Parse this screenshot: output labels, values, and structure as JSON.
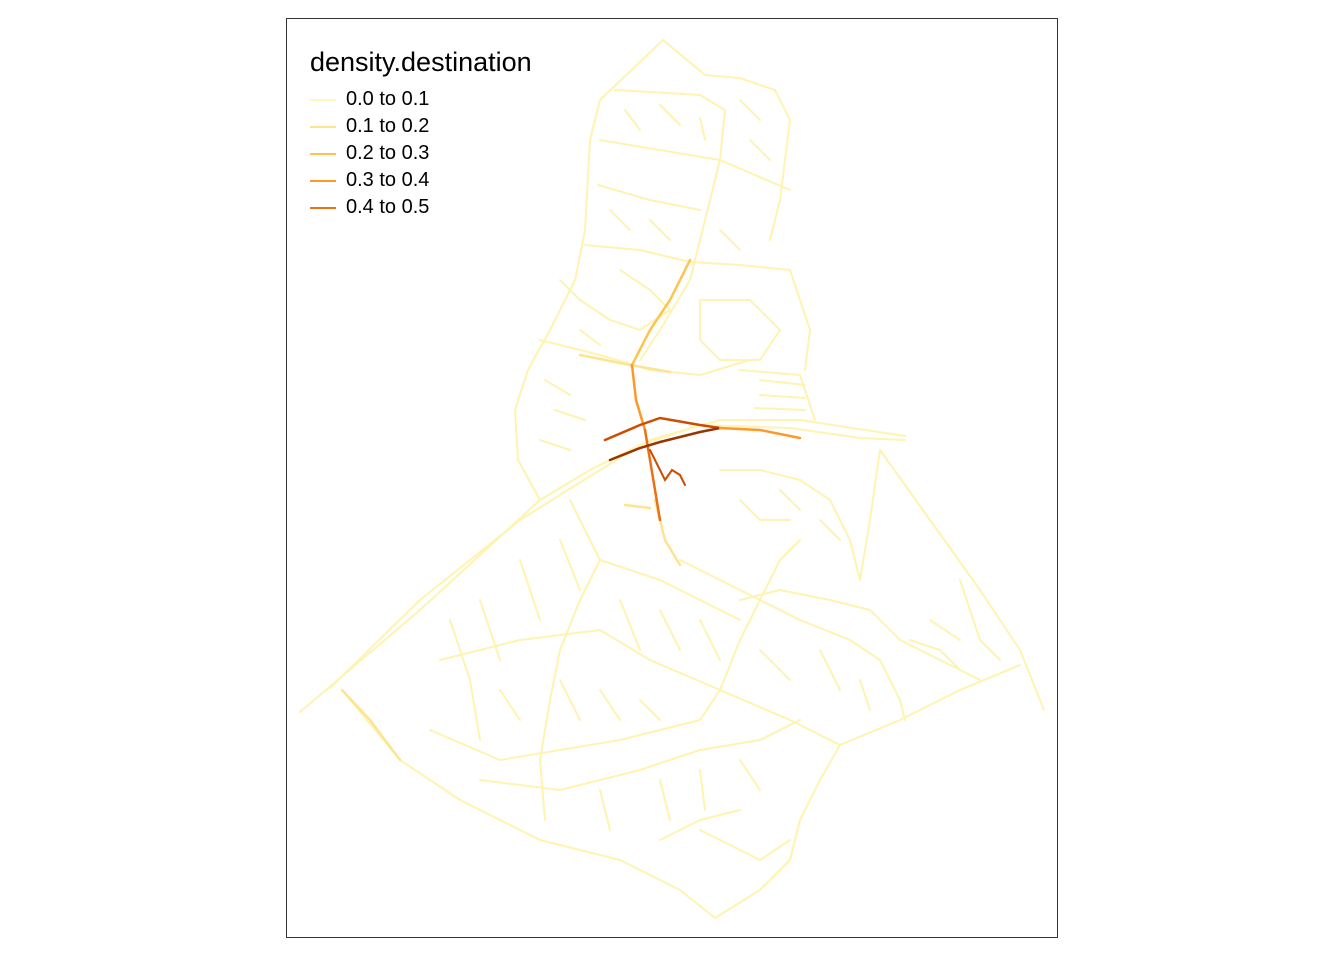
{
  "legend": {
    "title": "density.destination",
    "items": [
      {
        "label": "0.0 to 0.1",
        "color": "#FFF7BC"
      },
      {
        "label": "0.1 to 0.2",
        "color": "#FEE391"
      },
      {
        "label": "0.2 to 0.3",
        "color": "#FEC44F"
      },
      {
        "label": "0.3 to 0.4",
        "color": "#FE9929"
      },
      {
        "label": "0.4 to 0.5",
        "color": "#EC7014"
      }
    ]
  },
  "colors": {
    "background": "#FFFFFF",
    "frame": "#333333",
    "classes": [
      "#FFF7BC",
      "#FEE391",
      "#FEC44F",
      "#FE9929",
      "#EC7014",
      "#CC4C02",
      "#993404"
    ]
  }
}
